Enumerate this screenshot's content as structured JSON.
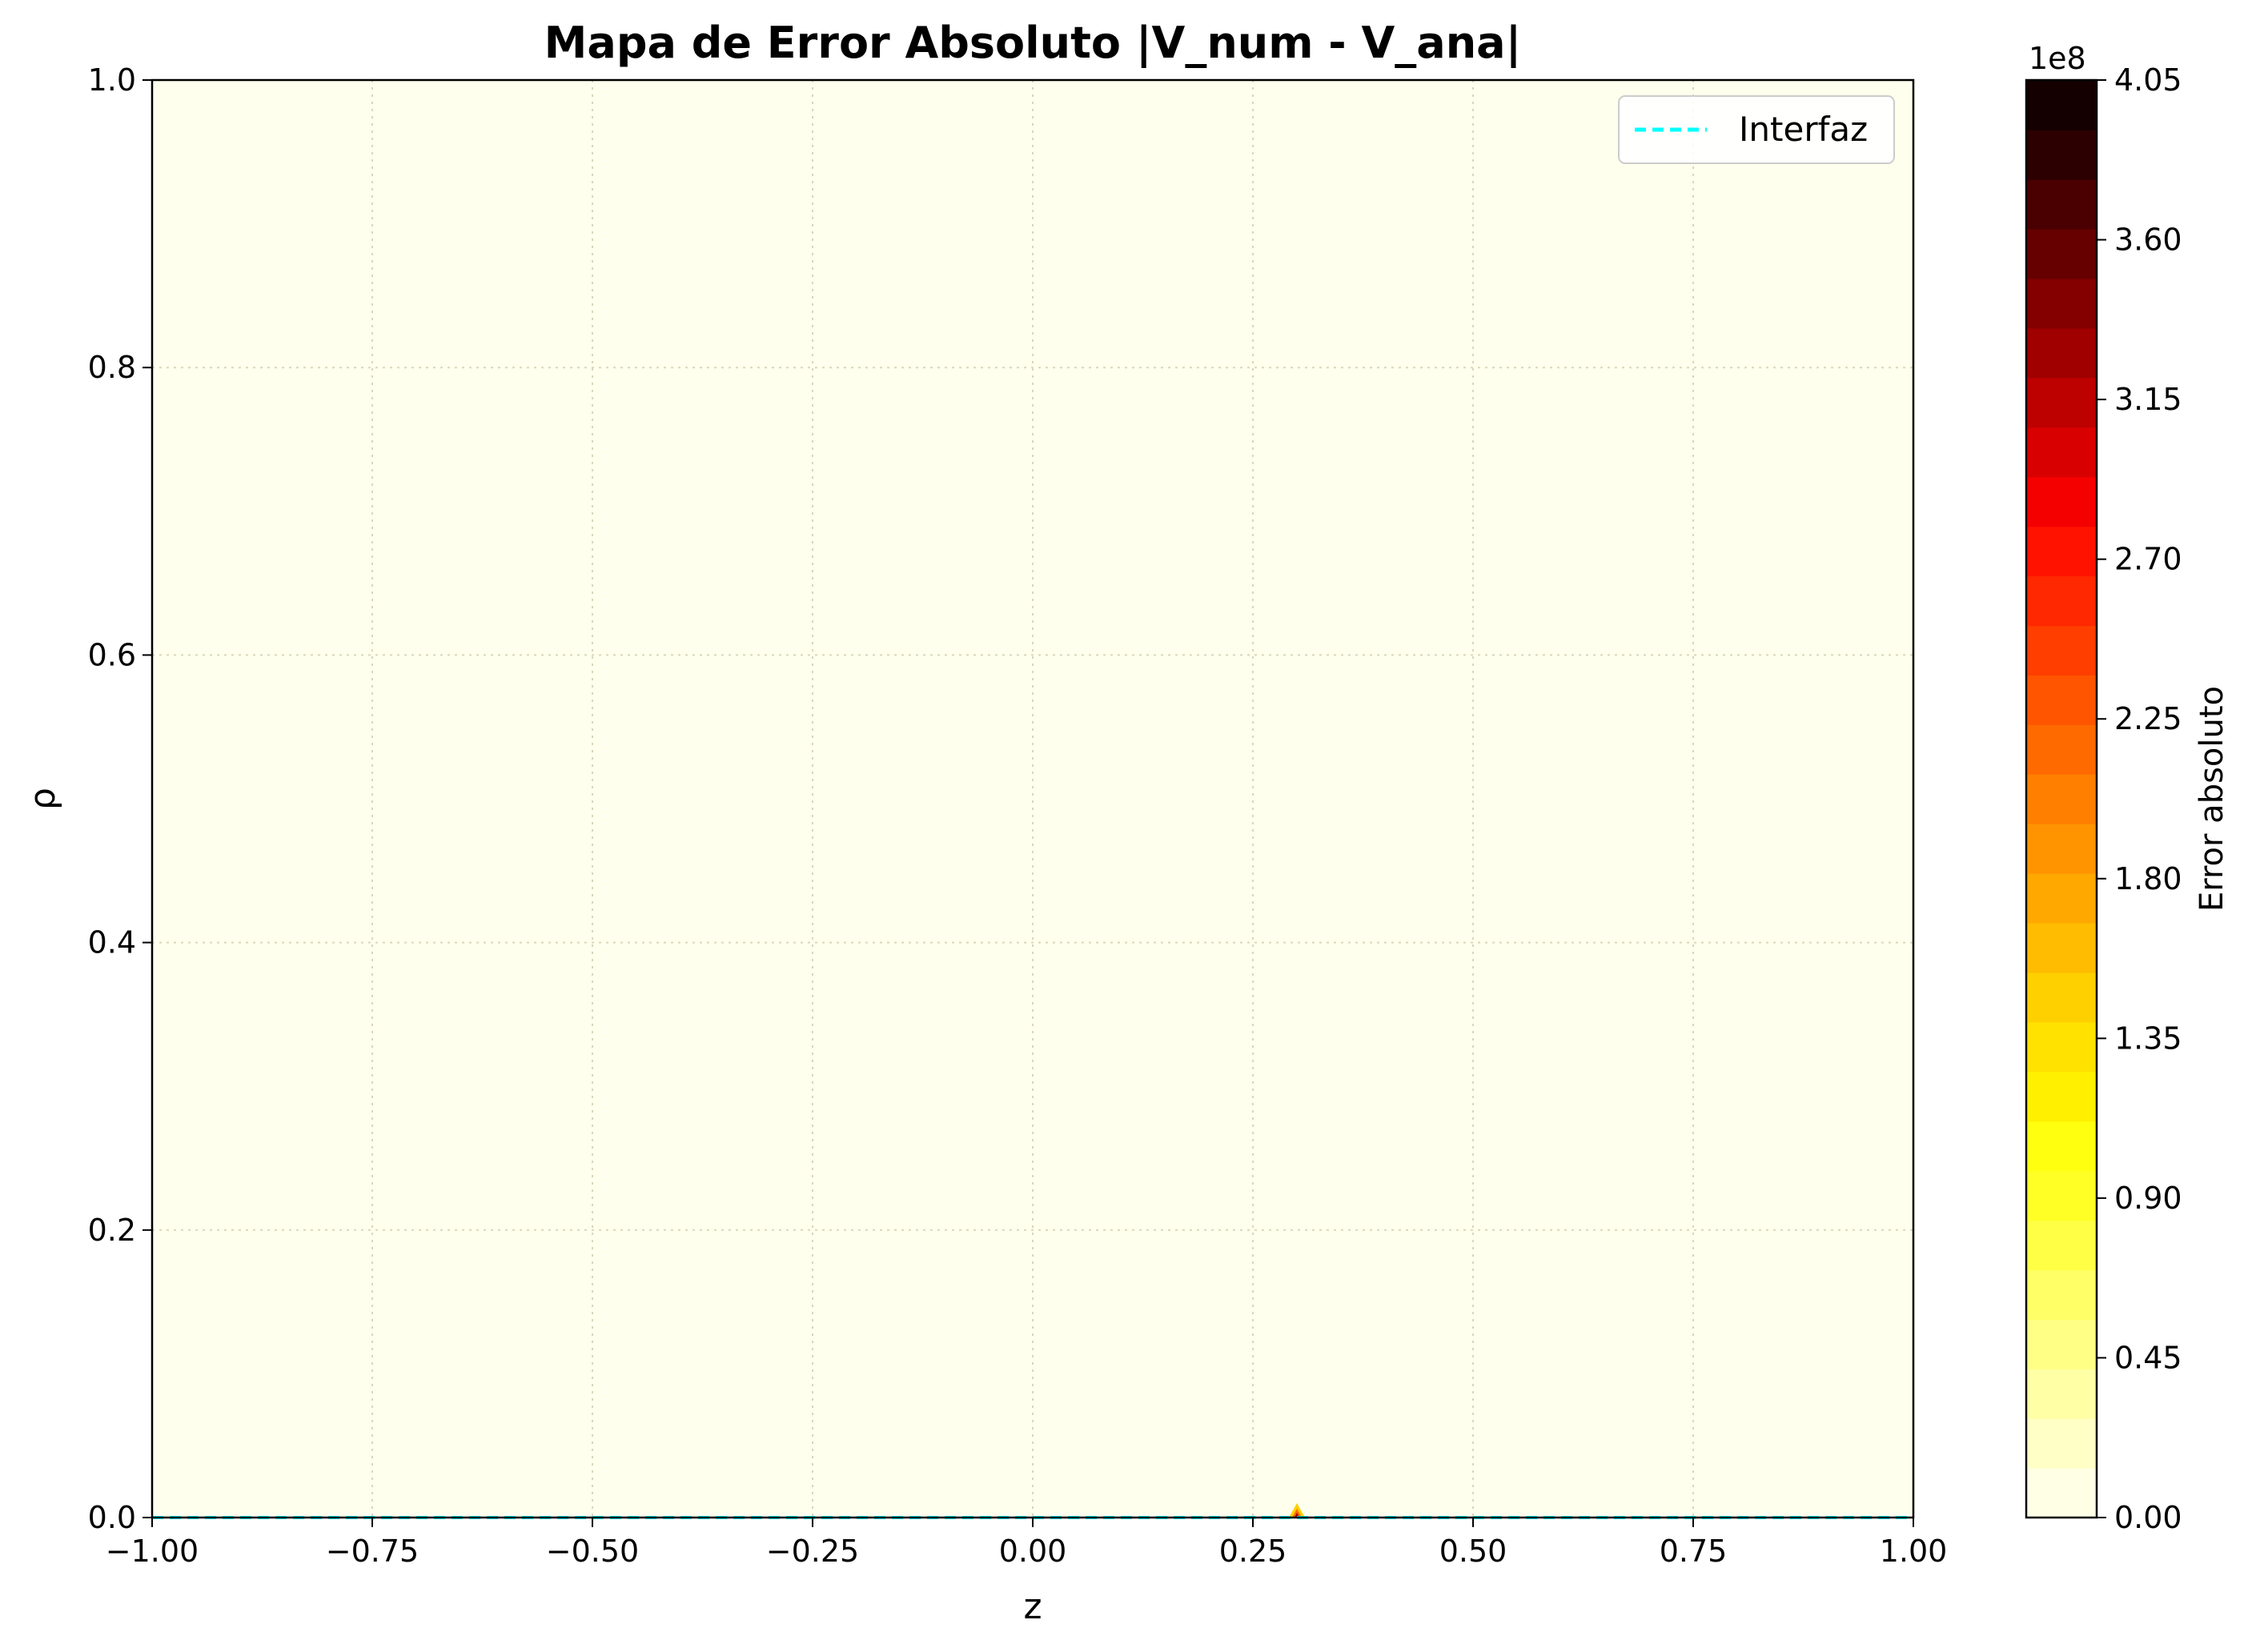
{
  "chart_data": {
    "type": "heatmap",
    "title": "Mapa de Error Absoluto |V_num - V_ana|",
    "xlabel": "z",
    "ylabel": "ρ",
    "xlim": [
      -1.0,
      1.0
    ],
    "ylim": [
      0.0,
      1.0
    ],
    "x_ticks": [
      "−1.00",
      "−0.75",
      "−0.50",
      "−0.25",
      "0.00",
      "0.25",
      "0.50",
      "0.75",
      "1.00"
    ],
    "y_ticks": [
      "0.0",
      "0.2",
      "0.4",
      "0.6",
      "0.8",
      "1.0"
    ],
    "grid": true,
    "background_value": 0,
    "hotspot": {
      "z": 0.3,
      "rho": 0.0,
      "max_error": 405000000
    },
    "series": [
      {
        "name": "Interfaz",
        "type": "line",
        "style": "dashed",
        "color": "#00ffff",
        "x": [
          -1.0,
          1.0
        ],
        "y": [
          0.0,
          0.0
        ]
      }
    ],
    "legend_position": "upper right",
    "colorbar": {
      "label": "Error absoluto",
      "offset_text": "1e8",
      "ticks": [
        "0.00",
        "0.45",
        "0.90",
        "1.35",
        "1.80",
        "2.25",
        "2.70",
        "3.15",
        "3.60",
        "4.05"
      ],
      "range": [
        0,
        4.05
      ],
      "levels": 27,
      "colormap": "hot_r",
      "colors": [
        "#ffffe6",
        "#ffffc6",
        "#ffffa6",
        "#ffff86",
        "#ffff66",
        "#ffff46",
        "#ffff26",
        "#ffff10",
        "#fff000",
        "#ffe200",
        "#ffd000",
        "#ffbc00",
        "#ffa800",
        "#ff9400",
        "#ff8000",
        "#ff6a00",
        "#ff5400",
        "#ff3e00",
        "#ff2800",
        "#ff1200",
        "#f50000",
        "#d80000",
        "#bd0000",
        "#a00000",
        "#840000",
        "#660000",
        "#4a0000",
        "#2c0000",
        "#140000"
      ]
    },
    "colors": {
      "field": "#ffffee",
      "grid": "#d8d8b8",
      "axis": "#000000"
    }
  }
}
